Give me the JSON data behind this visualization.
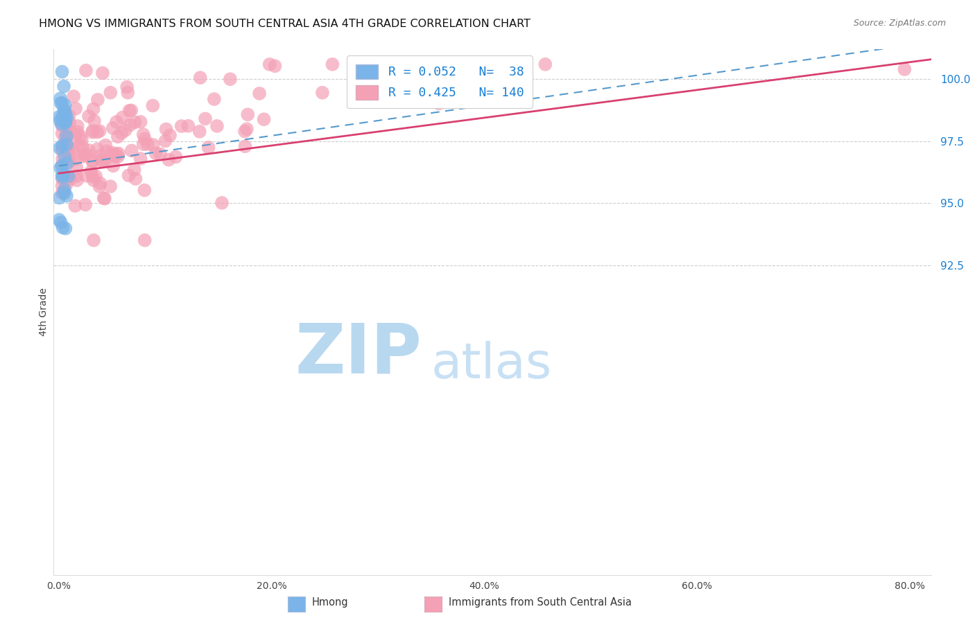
{
  "title": "HMONG VS IMMIGRANTS FROM SOUTH CENTRAL ASIA 4TH GRADE CORRELATION CHART",
  "source": "Source: ZipAtlas.com",
  "xlabel_ticks": [
    0.0,
    10.0,
    20.0,
    30.0,
    40.0,
    50.0,
    60.0,
    70.0,
    80.0
  ],
  "xlabel_labels": [
    "0.0%",
    "",
    "20.0%",
    "",
    "40.0%",
    "",
    "60.0%",
    "",
    "80.0%"
  ],
  "ylabel": "4th Grade",
  "ylim": [
    80.0,
    101.2
  ],
  "xlim": [
    -0.5,
    82.0
  ],
  "ytick_vals": [
    92.5,
    95.0,
    97.5,
    100.0
  ],
  "ytick_labels": [
    "92.5%",
    "95.0%",
    "97.5%",
    "100.0%"
  ],
  "grid_color": "#cccccc",
  "hmong_color": "#7ab4e8",
  "south_asia_color": "#f4a0b5",
  "hmong_edge_color": "#5a90c8",
  "south_asia_edge_color": "#e87090",
  "hmong_R": 0.052,
  "hmong_N": 38,
  "south_asia_R": 0.425,
  "south_asia_N": 140,
  "legend_color": "#1a7fd4",
  "watermark_zip_color": "#b8d8f0",
  "watermark_atlas_color": "#c8e0f4",
  "figsize": [
    14.06,
    8.92
  ],
  "dpi": 100,
  "hmong_trend_x0": 0.0,
  "hmong_trend_x1": 82.0,
  "hmong_trend_y0": 96.5,
  "hmong_trend_y1": 101.5,
  "sca_trend_x0": 0.0,
  "sca_trend_x1": 82.0,
  "sca_trend_y0": 96.2,
  "sca_trend_y1": 100.8
}
